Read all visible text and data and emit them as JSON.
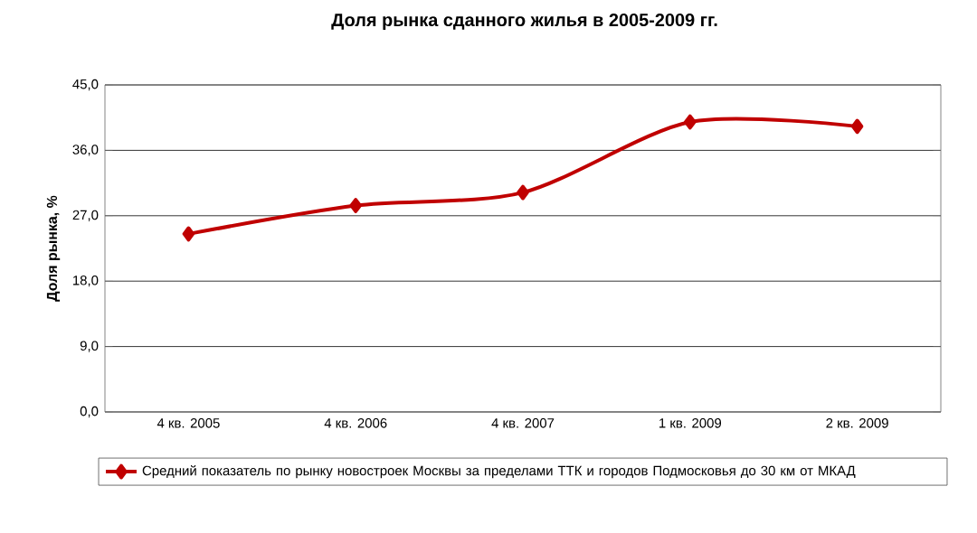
{
  "chart_data": {
    "type": "line",
    "title": "Доля рынка сданного жилья в 2005-2009 гг.",
    "ylabel": "Доля рынка, %",
    "categories": [
      "4 кв. 2005",
      "4 кв. 2006",
      "4 кв. 2007",
      "1 кв. 2009",
      "2 кв. 2009"
    ],
    "series": [
      {
        "name": "Средний показатель по рынку новостроек Москвы за пределами ТТК и городов Подмосковья до 30 км от МКАД",
        "color": "#c00000",
        "values": [
          24.5,
          28.4,
          30.2,
          39.9,
          39.3
        ]
      }
    ],
    "ylim": [
      0,
      45
    ],
    "yticks": [
      {
        "value": 0,
        "label": "0,0"
      },
      {
        "value": 9,
        "label": "9,0"
      },
      {
        "value": 18,
        "label": "18,0"
      },
      {
        "value": 27,
        "label": "27,0"
      },
      {
        "value": 36,
        "label": "36,0"
      },
      {
        "value": 45,
        "label": "45,0"
      }
    ],
    "grid": "y",
    "legend": "bottom",
    "marker": "diamond",
    "line_style": "solid"
  }
}
